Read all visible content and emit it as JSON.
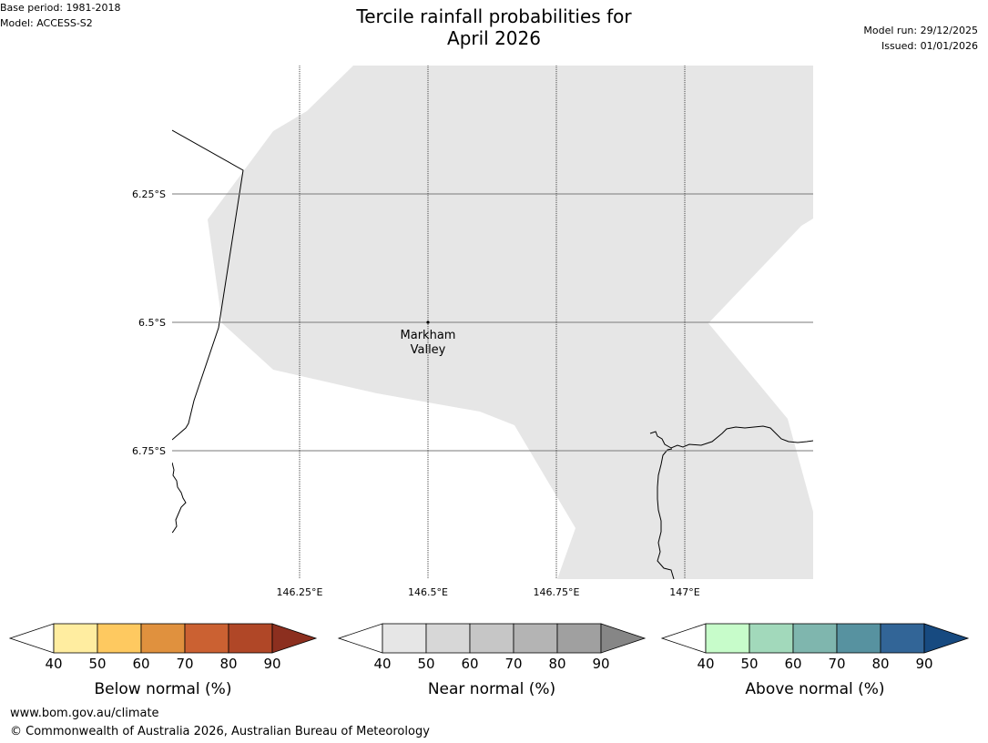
{
  "meta": {
    "base_period": "Base period: 1981-2018",
    "model": "Model: ACCESS-S2",
    "model_run": "Model run: 29/12/2025",
    "issued": "Issued: 01/01/2026"
  },
  "title": {
    "line1": "Tercile rainfall probabilities for",
    "line2": "April 2026"
  },
  "map": {
    "lat_labels": [
      "6.25°S",
      "6.5°S",
      "6.75°S"
    ],
    "lon_labels": [
      "146.25°E",
      "146.5°E",
      "146.75°E",
      "147°E"
    ],
    "place": {
      "line1": "Markham",
      "line2": "Valley"
    },
    "shading_category": "Near normal 40-50%",
    "shading_color": "#e6e6e6"
  },
  "colorbars": [
    {
      "label": "Below normal (%)",
      "ticks": [
        "40",
        "50",
        "60",
        "70",
        "80",
        "90"
      ],
      "colors": [
        "#ffffff",
        "#ffeda0",
        "#fec960",
        "#e0913e",
        "#cb6132",
        "#b04727",
        "#8c2f1f"
      ]
    },
    {
      "label": "Near normal (%)",
      "ticks": [
        "40",
        "50",
        "60",
        "70",
        "80",
        "90"
      ],
      "colors": [
        "#ffffff",
        "#e6e6e6",
        "#d7d7d7",
        "#c6c6c6",
        "#b4b4b4",
        "#a0a0a0",
        "#868686"
      ]
    },
    {
      "label": "Above normal (%)",
      "ticks": [
        "40",
        "50",
        "60",
        "70",
        "80",
        "90"
      ],
      "colors": [
        "#ffffff",
        "#c7fcca",
        "#a2d9bb",
        "#7fb6ae",
        "#5792a0",
        "#326597",
        "#174a80"
      ]
    }
  ],
  "footer": {
    "url": "www.bom.gov.au/climate",
    "copyright": "© Commonwealth of Australia 2026, Australian Bureau of Meteorology"
  }
}
